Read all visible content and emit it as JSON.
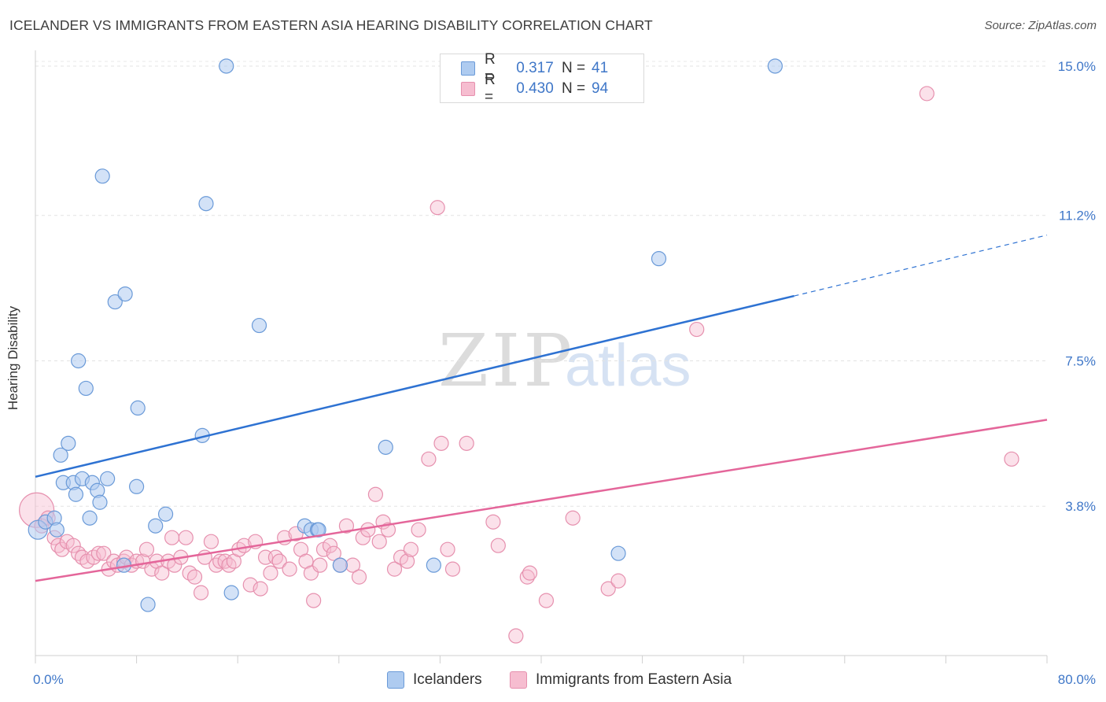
{
  "title": "ICELANDER VS IMMIGRANTS FROM EASTERN ASIA HEARING DISABILITY CORRELATION CHART",
  "source": "Source: ZipAtlas.com",
  "watermark": {
    "zip": "ZIP",
    "atlas": "atlas"
  },
  "legend": {
    "rows": [
      {
        "r_label": "R =",
        "r_value": "0.317",
        "n_label": "N =",
        "n_value": "41"
      },
      {
        "r_label": "R =",
        "r_value": "0.430",
        "n_label": "N =",
        "n_value": "94"
      }
    ]
  },
  "colors": {
    "blue_fill": "#aecbf0",
    "blue_stroke": "#6a9ad8",
    "blue_line": "#2e72d2",
    "pink_fill": "#f6bdd0",
    "pink_stroke": "#e690ae",
    "pink_line": "#e4669a",
    "accent_text": "#3f77c8"
  },
  "chart_data": {
    "type": "scatter",
    "title": "ICELANDER VS IMMIGRANTS FROM EASTERN ASIA HEARING DISABILITY CORRELATION CHART",
    "xlabel": "",
    "ylabel": "Hearing Disability",
    "xlim": [
      0,
      80
    ],
    "ylim": [
      0,
      15.4
    ],
    "x_tick_labels": [
      "0.0%",
      "80.0%"
    ],
    "y_ticks": [
      3.8,
      7.5,
      11.2,
      15.0
    ],
    "y_tick_labels": [
      "3.8%",
      "7.5%",
      "11.2%",
      "15.0%"
    ],
    "grid": true,
    "legend_position": "top-center",
    "series": [
      {
        "name": "Icelanders",
        "r": 0.317,
        "n": 41,
        "trend": {
          "x0": 0,
          "y0": 4.55,
          "x1": 60,
          "y1": 9.15,
          "dash_to_x": 80,
          "dash_to_y": 10.7
        },
        "points": [
          [
            0.2,
            3.2,
            2
          ],
          [
            0.8,
            3.4,
            1
          ],
          [
            1.5,
            3.5,
            1
          ],
          [
            1.7,
            3.2,
            1
          ],
          [
            2.0,
            5.1,
            1
          ],
          [
            2.2,
            4.4,
            1
          ],
          [
            2.6,
            5.4,
            1
          ],
          [
            3.0,
            4.4,
            1
          ],
          [
            3.2,
            4.1,
            1
          ],
          [
            3.4,
            7.5,
            1
          ],
          [
            3.7,
            4.5,
            1
          ],
          [
            4.0,
            6.8,
            1
          ],
          [
            4.3,
            3.5,
            1
          ],
          [
            4.5,
            4.4,
            1
          ],
          [
            4.9,
            4.2,
            1
          ],
          [
            5.1,
            3.9,
            1
          ],
          [
            5.3,
            12.2,
            1
          ],
          [
            5.7,
            4.5,
            1
          ],
          [
            6.3,
            9.0,
            1
          ],
          [
            7.1,
            9.2,
            1
          ],
          [
            7.0,
            2.3,
            1
          ],
          [
            8.0,
            4.3,
            1
          ],
          [
            8.1,
            6.3,
            1
          ],
          [
            8.9,
            1.3,
            1
          ],
          [
            9.5,
            3.3,
            1
          ],
          [
            10.3,
            3.6,
            1
          ],
          [
            13.2,
            5.6,
            1
          ],
          [
            13.5,
            11.5,
            1
          ],
          [
            15.1,
            15.0,
            1
          ],
          [
            15.5,
            1.6,
            1
          ],
          [
            17.7,
            8.4,
            1
          ],
          [
            21.3,
            3.3,
            1
          ],
          [
            21.8,
            3.2,
            1
          ],
          [
            22.3,
            3.2,
            1
          ],
          [
            22.4,
            3.2,
            1
          ],
          [
            24.1,
            2.3,
            1
          ],
          [
            27.7,
            5.3,
            1
          ],
          [
            31.5,
            2.3,
            1
          ],
          [
            46.1,
            2.6,
            1
          ],
          [
            49.3,
            10.1,
            1
          ],
          [
            58.5,
            15.0,
            1
          ]
        ]
      },
      {
        "name": "Immigrants from Eastern Asia",
        "r": 0.43,
        "n": 94,
        "trend": {
          "x0": 0,
          "y0": 1.9,
          "x1": 80,
          "y1": 6.0
        },
        "points": [
          [
            0.1,
            3.7,
            3
          ],
          [
            0.5,
            3.3,
            1
          ],
          [
            1.0,
            3.5,
            1
          ],
          [
            1.5,
            3.0,
            1
          ],
          [
            1.8,
            2.8,
            1
          ],
          [
            2.1,
            2.7,
            1
          ],
          [
            2.5,
            2.9,
            1
          ],
          [
            3.0,
            2.8,
            1
          ],
          [
            3.4,
            2.6,
            1
          ],
          [
            3.7,
            2.5,
            1
          ],
          [
            4.1,
            2.4,
            1
          ],
          [
            4.6,
            2.5,
            1
          ],
          [
            5.0,
            2.6,
            1
          ],
          [
            5.4,
            2.6,
            1
          ],
          [
            5.8,
            2.2,
            1
          ],
          [
            6.2,
            2.4,
            1
          ],
          [
            6.5,
            2.3,
            1
          ],
          [
            7.0,
            2.4,
            1
          ],
          [
            7.2,
            2.5,
            1
          ],
          [
            7.6,
            2.3,
            1
          ],
          [
            8.0,
            2.4,
            1
          ],
          [
            8.5,
            2.4,
            1
          ],
          [
            8.8,
            2.7,
            1
          ],
          [
            9.2,
            2.2,
            1
          ],
          [
            9.6,
            2.4,
            1
          ],
          [
            10.0,
            2.1,
            1
          ],
          [
            10.5,
            2.4,
            1
          ],
          [
            10.8,
            3.0,
            1
          ],
          [
            11.0,
            2.3,
            1
          ],
          [
            11.5,
            2.5,
            1
          ],
          [
            11.9,
            3.0,
            1
          ],
          [
            12.2,
            2.1,
            1
          ],
          [
            12.6,
            2.0,
            1
          ],
          [
            13.1,
            1.6,
            1
          ],
          [
            13.4,
            2.5,
            1
          ],
          [
            13.9,
            2.9,
            1
          ],
          [
            14.3,
            2.3,
            1
          ],
          [
            14.6,
            2.4,
            1
          ],
          [
            15.0,
            2.4,
            1
          ],
          [
            15.3,
            2.3,
            1
          ],
          [
            15.7,
            2.4,
            1
          ],
          [
            16.1,
            2.7,
            1
          ],
          [
            16.5,
            2.8,
            1
          ],
          [
            17.0,
            1.8,
            1
          ],
          [
            17.4,
            2.9,
            1
          ],
          [
            17.8,
            1.7,
            1
          ],
          [
            18.2,
            2.5,
            1
          ],
          [
            18.6,
            2.1,
            1
          ],
          [
            19.0,
            2.5,
            1
          ],
          [
            19.3,
            2.4,
            1
          ],
          [
            19.7,
            3.0,
            1
          ],
          [
            20.1,
            2.2,
            1
          ],
          [
            20.6,
            3.1,
            1
          ],
          [
            21.0,
            2.7,
            1
          ],
          [
            21.4,
            2.4,
            1
          ],
          [
            21.8,
            2.1,
            1
          ],
          [
            22.0,
            1.4,
            1
          ],
          [
            22.5,
            2.3,
            1
          ],
          [
            22.8,
            2.7,
            1
          ],
          [
            23.3,
            2.8,
            1
          ],
          [
            23.6,
            2.6,
            1
          ],
          [
            24.1,
            2.3,
            1
          ],
          [
            24.6,
            3.3,
            1
          ],
          [
            25.1,
            2.3,
            1
          ],
          [
            25.6,
            2.0,
            1
          ],
          [
            25.9,
            3.0,
            1
          ],
          [
            26.3,
            3.2,
            1
          ],
          [
            26.9,
            4.1,
            1
          ],
          [
            27.2,
            2.9,
            1
          ],
          [
            27.5,
            3.4,
            1
          ],
          [
            27.9,
            3.2,
            1
          ],
          [
            28.4,
            2.2,
            1
          ],
          [
            28.9,
            2.5,
            1
          ],
          [
            29.4,
            2.4,
            1
          ],
          [
            29.7,
            2.7,
            1
          ],
          [
            30.3,
            3.2,
            1
          ],
          [
            31.1,
            5.0,
            1
          ],
          [
            31.8,
            11.4,
            1
          ],
          [
            32.1,
            5.4,
            1
          ],
          [
            32.6,
            2.7,
            1
          ],
          [
            33.0,
            2.2,
            1
          ],
          [
            34.1,
            5.4,
            1
          ],
          [
            36.2,
            3.4,
            1
          ],
          [
            36.6,
            2.8,
            1
          ],
          [
            38.0,
            0.5,
            1
          ],
          [
            38.9,
            2.0,
            1
          ],
          [
            39.1,
            2.1,
            1
          ],
          [
            40.4,
            1.4,
            1
          ],
          [
            42.5,
            3.5,
            1
          ],
          [
            45.3,
            1.7,
            1
          ],
          [
            46.1,
            1.9,
            1
          ],
          [
            52.3,
            8.3,
            1
          ],
          [
            70.5,
            14.3,
            1
          ],
          [
            77.2,
            5.0,
            1
          ]
        ]
      }
    ]
  }
}
